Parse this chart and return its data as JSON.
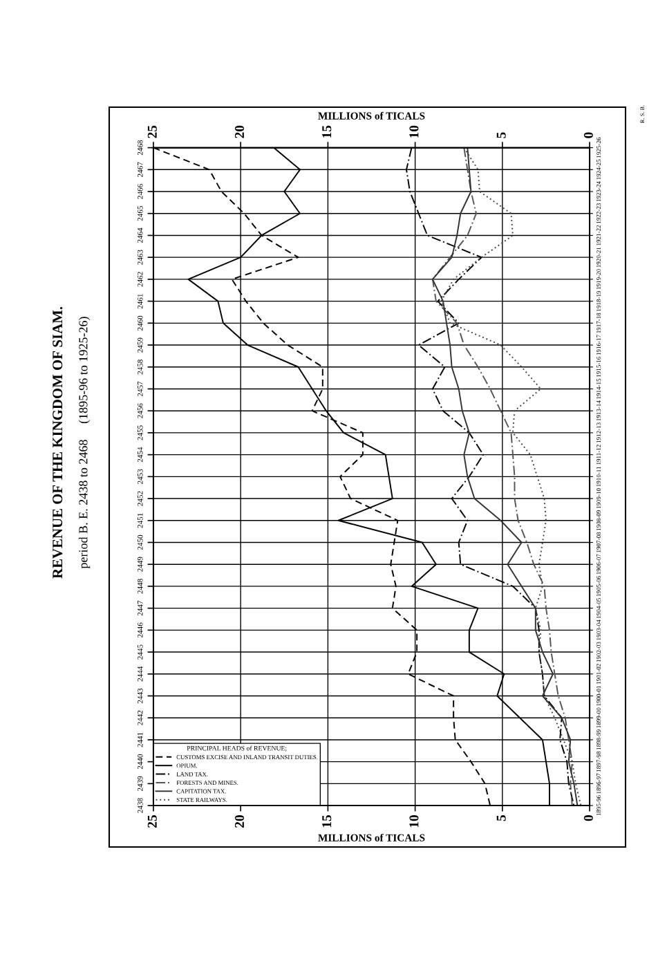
{
  "chart_data": {
    "type": "line",
    "title": "REVENUE OF THE KINGDOM OF SIAM.",
    "subtitle": "period B. E. 2438 to 2468     (1895-96 to 1925-26)",
    "xlabel": "MILLIONS of TICALS",
    "x2label": "MILLIONS of TICALS",
    "orientation": "horizontal",
    "categories": [
      "2468",
      "2467",
      "2466",
      "2465",
      "2464",
      "2463",
      "2462",
      "2461",
      "2460",
      "2459",
      "2458",
      "2457",
      "2456",
      "2455",
      "2454",
      "2453",
      "2452",
      "2451",
      "2450",
      "2449",
      "2448",
      "2447",
      "2446",
      "2445",
      "2444",
      "2443",
      "2442",
      "2441",
      "2440",
      "2439",
      "2438"
    ],
    "y2_categories": [
      "1925-26",
      "1924-25",
      "1923-24",
      "1922-23",
      "1921-22",
      "1920-21",
      "1919-20",
      "1918-19",
      "1917-18",
      "1916-17",
      "1915-16",
      "1914-15",
      "1913-14",
      "1912-13",
      "1911-12",
      "1910-11",
      "1909-10",
      "1908-09",
      "1907-08",
      "1906-07",
      "1905-06",
      "1904-05",
      "1903-04",
      "1902-03",
      "1901-02",
      "1900-01",
      "1899-00",
      "1898-99",
      "1897-98",
      "1896-97",
      "1895-96"
    ],
    "xlim": [
      25,
      0
    ],
    "xticks": [
      25,
      20,
      15,
      10,
      5,
      0
    ],
    "x2lim": [
      25,
      0
    ],
    "x2ticks": [
      25,
      20,
      15,
      10,
      5,
      0
    ],
    "grid": true,
    "legend": "bottom left",
    "legend_title": "PRINCIPAL HEADS of REVENUE;",
    "marker": "none",
    "series": [
      {
        "name": "CUSTOMS EXCISE AND INLAND TRANSIT DUTIES.",
        "color": "#000000",
        "line_style": "dashed",
        "values": [
          25.0,
          21.8,
          21.1,
          19.8,
          18.8,
          16.7,
          20.5,
          19.7,
          18.7,
          17.3,
          15.3,
          15.3,
          15.9,
          13.0,
          13.0,
          14.3,
          13.7,
          11.0,
          11.2,
          11.4,
          11.1,
          11.3,
          9.9,
          9.9,
          10.4,
          7.8,
          7.8,
          7.7,
          6.8,
          6.0,
          5.7
        ]
      },
      {
        "name": "OPIUM.",
        "color": "#000000",
        "line_style": "solid",
        "values": [
          18.1,
          16.6,
          17.5,
          16.6,
          18.8,
          20.0,
          23.0,
          21.3,
          21.0,
          19.6,
          16.7,
          15.9,
          15.1,
          14.1,
          11.7,
          11.5,
          11.3,
          14.4,
          9.6,
          8.8,
          10.2,
          6.4,
          6.9,
          6.9,
          4.9,
          5.3,
          4.0,
          2.7,
          2.5,
          2.3,
          2.3
        ]
      },
      {
        "name": "LAND TAX.",
        "color": "#000000",
        "line_style": "dashdot",
        "values": [
          10.2,
          10.5,
          10.3,
          9.8,
          9.3,
          6.2,
          7.5,
          8.7,
          7.5,
          9.8,
          8.3,
          9.0,
          8.4,
          6.9,
          6.1,
          6.9,
          7.9,
          7.0,
          7.5,
          7.4,
          4.4,
          3.1,
          2.9,
          2.9,
          2.7,
          2.6,
          1.6,
          1.7,
          1.3,
          1.2,
          0.9
        ]
      },
      {
        "name": "FORESTS AND MINES.",
        "color": "#555555",
        "line_style": "dashdot",
        "values": [
          7.2,
          7.0,
          6.8,
          6.5,
          7.0,
          8.0,
          9.0,
          8.8,
          7.6,
          7.2,
          6.4,
          5.7,
          5.1,
          4.5,
          4.4,
          4.3,
          4.3,
          4.1,
          3.6,
          3.2,
          2.6,
          2.5,
          2.3,
          2.2,
          2.0,
          1.8,
          1.4,
          1.2,
          1.0,
          1.1,
          1.0
        ]
      },
      {
        "name": "CAPITATION TAX.",
        "color": "#333333",
        "line_style": "solid",
        "values": [
          7.0,
          6.9,
          6.8,
          7.4,
          7.6,
          7.9,
          9.0,
          8.4,
          8.2,
          8.0,
          7.9,
          7.5,
          7.3,
          6.9,
          7.2,
          7.0,
          6.6,
          5.1,
          3.9,
          4.7,
          3.9,
          3.1,
          3.1,
          2.7,
          2.1,
          2.7,
          1.6,
          1.1,
          1.2,
          0.9,
          0.7
        ]
      },
      {
        "name": "STATE RAILWAYS.",
        "color": "#444444",
        "line_style": "dotted",
        "values": [
          7.2,
          6.4,
          6.3,
          4.5,
          4.4,
          6.2,
          7.8,
          8.5,
          8.0,
          5.1,
          3.9,
          2.8,
          4.3,
          4.4,
          3.4,
          3.0,
          2.6,
          2.5,
          2.7,
          2.9,
          2.7,
          3.1,
          2.8,
          2.9,
          2.7,
          2.6,
          2.0,
          1.5,
          1.0,
          0.8,
          0.5
        ]
      }
    ],
    "annotations": [
      "R. S. B."
    ]
  }
}
